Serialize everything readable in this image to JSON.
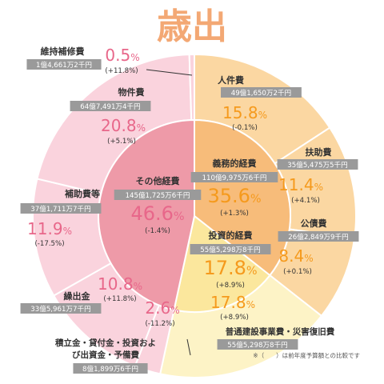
{
  "chart_data": {
    "type": "pie",
    "title": "歳出",
    "inner_ring": [
      {
        "name": "義務的経費",
        "amount": "110億9,975万6千円",
        "percent": 35.6,
        "change": "(+1.3%)",
        "color": "#f7bc7a"
      },
      {
        "name": "投資的経費",
        "amount": "55億5,298万8千円",
        "percent": 17.8,
        "change": "(+8.9%)",
        "color": "#fbe79d"
      },
      {
        "name": "その他経費",
        "amount": "145億1,725万6千円",
        "percent": 46.6,
        "change": "(-1.4%)",
        "color": "#ee9aa8"
      }
    ],
    "outer_ring": [
      {
        "name": "人件費",
        "amount": "49億1,650万2千円",
        "percent": 15.8,
        "change": "(-0.1%)",
        "color": "#fbd7a2"
      },
      {
        "name": "扶助費",
        "amount": "35億5,475万5千円",
        "percent": 11.4,
        "change": "(+4.1%)",
        "color": "#fbd7a2"
      },
      {
        "name": "公債費",
        "amount": "26億2,849万9千円",
        "percent": 8.4,
        "change": "(+0.1%)",
        "color": "#fbd7a2"
      },
      {
        "name": "普通建設事業費・災害復旧費",
        "amount": "55億5,298万8千円",
        "percent": 17.8,
        "change": "(+8.9%)",
        "color": "#fdf3c6"
      },
      {
        "name": "積立金・貸付金・投資および出資金・予備費",
        "amount": "8億1,899万6千円",
        "percent": 2.6,
        "change": "(-11.2%)",
        "color": "#fad3dd"
      },
      {
        "name": "繰出金",
        "amount": "33億5,961万7千円",
        "percent": 10.8,
        "change": "(+11.8%)",
        "color": "#fad3dd"
      },
      {
        "name": "補助費等",
        "amount": "37億1,711万7千円",
        "percent": 11.9,
        "change": "(-17.5%)",
        "color": "#fad3dd"
      },
      {
        "name": "物件費",
        "amount": "64億7,491万4千円",
        "percent": 20.8,
        "change": "(+5.1%)",
        "color": "#fad3dd"
      },
      {
        "name": "維持補修費",
        "amount": "1億4,661万2千円",
        "percent": 0.5,
        "change": "(+11.8%)",
        "color": "#fad3dd"
      }
    ],
    "note": "※（　　）は前年度予算額との比較です",
    "colors": {
      "title": "#f3a874",
      "percent_orange": "#f59a1d",
      "percent_pink": "#e8678a",
      "amount_label_bg": "#9a9a9a",
      "name_text": "#333333",
      "divider": "#ffffff"
    }
  }
}
